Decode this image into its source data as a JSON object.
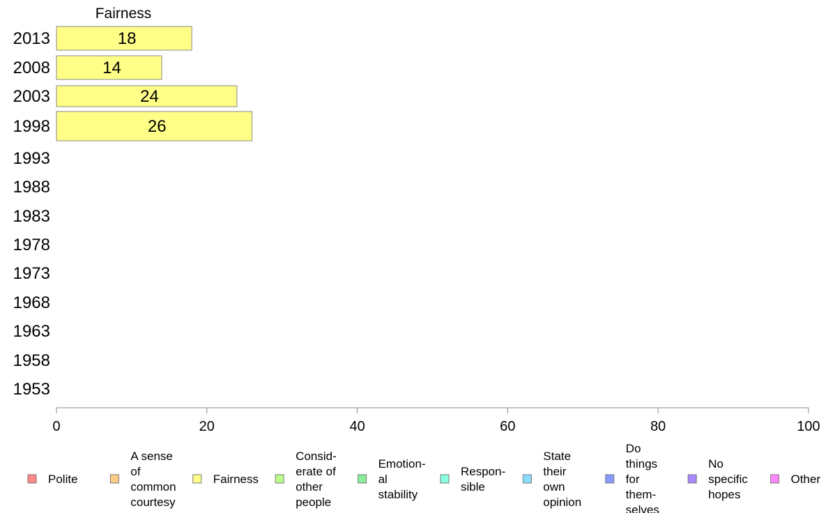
{
  "chart_data": {
    "type": "bar",
    "orientation": "horizontal",
    "title": "Fairness",
    "categories": [
      "2013",
      "2008",
      "2003",
      "1998",
      "1993",
      "1988",
      "1983",
      "1978",
      "1973",
      "1968",
      "1963",
      "1958",
      "1953"
    ],
    "series": [
      {
        "name": "Fairness",
        "values": [
          18,
          14,
          24,
          26,
          null,
          null,
          null,
          null,
          null,
          null,
          null,
          null,
          null
        ],
        "color": "#ffff88"
      }
    ],
    "data_labels": [
      "18",
      "14",
      "24",
      "26",
      "",
      "",
      "",
      "",
      "",
      "",
      "",
      "",
      ""
    ],
    "xlim": [
      0,
      100
    ],
    "x_ticks": [
      0,
      20,
      40,
      60,
      80,
      100
    ],
    "x_tick_labels": [
      "0",
      "20",
      "40",
      "60",
      "80",
      "100"
    ],
    "grid": false,
    "legend_position": "bottom",
    "legend": [
      {
        "label": [
          "Polite"
        ],
        "color": "#ff8888"
      },
      {
        "label": [
          "A sense",
          "of",
          "common",
          "courtesy"
        ],
        "color": "#ffcc88"
      },
      {
        "label": [
          "Fairness"
        ],
        "color": "#ffff88"
      },
      {
        "label": [
          "Consid-",
          "erate of",
          "other",
          "people"
        ],
        "color": "#bbff88"
      },
      {
        "label": [
          "Emotion-",
          "al",
          "stability"
        ],
        "color": "#88ee99"
      },
      {
        "label": [
          "Respon-",
          "sible"
        ],
        "color": "#88ffdd"
      },
      {
        "label": [
          "State",
          "their",
          "own",
          "opinion"
        ],
        "color": "#88ddff"
      },
      {
        "label": [
          "Do",
          "things",
          "for",
          "them-",
          "selves"
        ],
        "color": "#8899ff"
      },
      {
        "label": [
          "No",
          "specific",
          "hopes"
        ],
        "color": "#aa88ff"
      },
      {
        "label": [
          "Other"
        ],
        "color": "#ff88ff"
      }
    ]
  }
}
